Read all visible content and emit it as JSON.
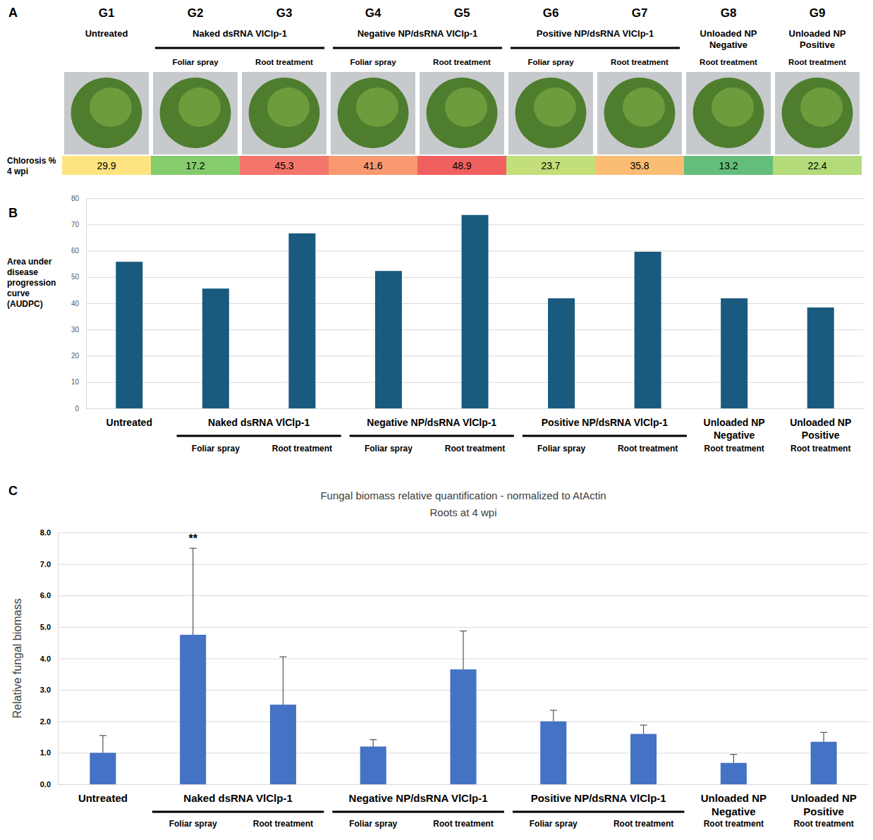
{
  "chart_data": [
    {
      "type": "table",
      "panel_label": "A",
      "group_codes": [
        "G1",
        "G2",
        "G3",
        "G4",
        "G5",
        "G6",
        "G7",
        "G8",
        "G9"
      ],
      "groups": [
        {
          "label": "Untreated",
          "count": 1
        },
        {
          "label": "Naked dsRNA VlClp-1",
          "count": 2
        },
        {
          "label": "Negative NP/dsRNA VlClp-1",
          "count": 2
        },
        {
          "label": "Positive NP/dsRNA VlClp-1",
          "count": 2
        },
        {
          "label": "Unloaded NP Negative",
          "count": 1
        },
        {
          "label": "Unloaded NP Positive",
          "count": 1
        }
      ],
      "categories": [
        null,
        "Foliar spray",
        "Root treatment",
        "Foliar spray",
        "Root treatment",
        "Foliar spray",
        "Root treatment",
        "Root treatment",
        "Root treatment"
      ],
      "row_label": "Chlorosis % 4 wpi",
      "values": [
        29.9,
        17.2,
        45.3,
        41.6,
        48.9,
        23.7,
        35.8,
        13.2,
        22.4
      ],
      "colors": [
        "#fde481",
        "#85cc6d",
        "#f4766b",
        "#f8996f",
        "#f0605f",
        "#c2df7a",
        "#fbbd74",
        "#63be7b",
        "#b4db79"
      ]
    },
    {
      "type": "bar",
      "panel_label": "B",
      "y_label": "Area under disease progression curve (AUDPC)",
      "groups": [
        {
          "label": "Untreated",
          "count": 1
        },
        {
          "label": "Naked dsRNA VlClp-1",
          "count": 2
        },
        {
          "label": "Negative NP/dsRNA VlClp-1",
          "count": 2
        },
        {
          "label": "Positive NP/dsRNA VlClp-1",
          "count": 2
        },
        {
          "label": "Unloaded NP Negative",
          "count": 1
        },
        {
          "label": "Unloaded NP Positive",
          "count": 1
        }
      ],
      "categories": [
        null,
        "Foliar spray",
        "Root treatment",
        "Foliar spray",
        "Root treatment",
        "Foliar spray",
        "Root treatment",
        "Root treatment",
        "Root treatment"
      ],
      "values": [
        55.8,
        45.6,
        66.6,
        52.3,
        73.6,
        41.9,
        59.6,
        41.9,
        38.4
      ],
      "color": "#1a5a7e",
      "ylim": [
        0,
        80
      ],
      "yticks": [
        0,
        10,
        20,
        30,
        40,
        50,
        60,
        70,
        80
      ],
      "grid": true
    },
    {
      "type": "bar",
      "panel_label": "C",
      "title": "Fungal biomass relative quantification - normalized to AtActin",
      "subtitle": "Roots at 4 wpi",
      "y_label": "Relative fungal biomass",
      "groups": [
        {
          "label": "Untreated",
          "count": 1
        },
        {
          "label": "Naked dsRNA VlClp-1",
          "count": 2
        },
        {
          "label": "Negative NP/dsRNA VlClp-1",
          "count": 2
        },
        {
          "label": "Positive NP/dsRNA VlClp-1",
          "count": 2
        },
        {
          "label": "Unloaded NP Negative",
          "count": 1
        },
        {
          "label": "Unloaded NP Positive",
          "count": 1
        }
      ],
      "categories": [
        null,
        "Foliar spray",
        "Root treatment",
        "Foliar spray",
        "Root treatment",
        "Foliar spray",
        "Root treatment",
        "Root treatment",
        "Root treatment"
      ],
      "values": [
        1.0,
        4.75,
        2.53,
        1.2,
        3.65,
        2.0,
        1.6,
        0.68,
        1.35
      ],
      "errors": [
        0.55,
        2.75,
        1.52,
        0.22,
        1.22,
        0.35,
        0.28,
        0.27,
        0.3
      ],
      "annotations": [
        {
          "text": "**",
          "index": 1
        }
      ],
      "color": "#4472c4",
      "ylim": [
        0,
        8
      ],
      "yticks": [
        {
          "value": 0,
          "label": "0.0"
        },
        {
          "value": 1,
          "label": "1.0"
        },
        {
          "value": 2,
          "label": "2.0"
        },
        {
          "value": 3,
          "label": "3.0"
        },
        {
          "value": 4,
          "label": "4.0"
        },
        {
          "value": 5,
          "label": "5.0"
        },
        {
          "value": 6,
          "label": "6.0"
        },
        {
          "value": 7,
          "label": "7.0"
        },
        {
          "value": 8,
          "label": "8.0"
        }
      ],
      "grid": true
    }
  ]
}
